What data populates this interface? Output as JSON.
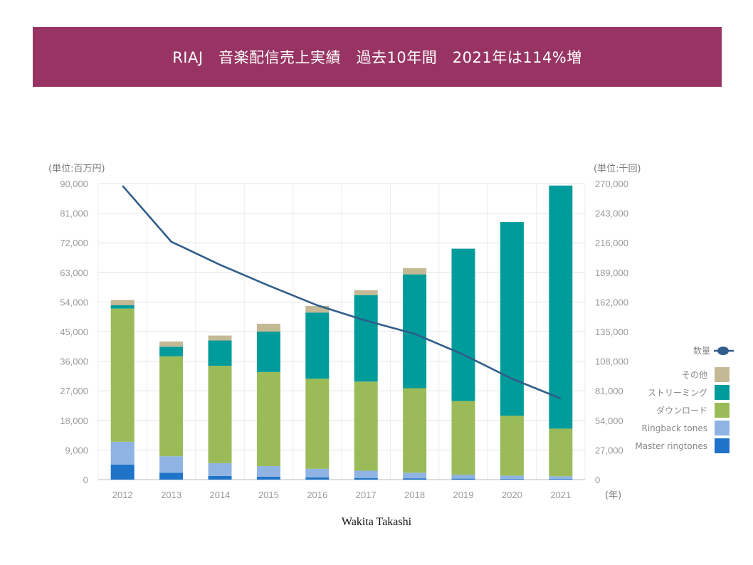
{
  "header": {
    "title": "RIAJ　音楽配信売上実績　過去10年間　2021年は114%増",
    "banner_color": "#983463"
  },
  "footer": {
    "credit": "Wakita Takashi"
  },
  "chart_data": {
    "type": "bar",
    "stacked": true,
    "categories": [
      "2012",
      "2013",
      "2014",
      "2015",
      "2016",
      "2017",
      "2018",
      "2019",
      "2020",
      "2021"
    ],
    "series": [
      {
        "name": "Master ringtones",
        "color": "#1f73c8",
        "values": [
          4600,
          2100,
          1100,
          900,
          700,
          500,
          400,
          300,
          200,
          200
        ]
      },
      {
        "name": "Ringback tones",
        "color": "#8fb4e3",
        "values": [
          6900,
          5000,
          3900,
          3200,
          2600,
          2200,
          1700,
          1200,
          1000,
          800
        ]
      },
      {
        "name": "ダウンロード",
        "color": "#9bbb59",
        "values": [
          40500,
          30400,
          29600,
          28600,
          27400,
          27100,
          25700,
          22400,
          18200,
          14500
        ]
      },
      {
        "name": "ストリーミング",
        "color": "#009b9b",
        "values": [
          1000,
          2900,
          7700,
          12300,
          20100,
          26300,
          34600,
          46300,
          58900,
          73900
        ]
      },
      {
        "name": "その他",
        "color": "#c4b995",
        "values": [
          1600,
          1600,
          1500,
          2400,
          2000,
          1500,
          1900,
          0,
          0,
          0
        ]
      }
    ],
    "line_series": {
      "name": "数量",
      "color": "#2f5d8c",
      "values": [
        268000,
        217000,
        196000,
        177000,
        159000,
        145000,
        133000,
        114000,
        92000,
        74000
      ]
    },
    "ylim_left": [
      0,
      90000
    ],
    "yticks_left": [
      "0",
      "9,000",
      "18,000",
      "27,000",
      "36,000",
      "45,000",
      "54,000",
      "63,000",
      "72,000",
      "81,000",
      "90,000"
    ],
    "ylim_right": [
      0,
      270000
    ],
    "yticks_right": [
      "0",
      "27,000",
      "54,000",
      "81,000",
      "108,000",
      "135,000",
      "162,000",
      "189,000",
      "216,000",
      "243,000",
      "270,000"
    ],
    "ylabel_left": "(単位:百万円)",
    "ylabel_right": "(単位:千回)",
    "xlabel": "(年)",
    "grid": true,
    "legend_position": "right",
    "legend_order": [
      "数量",
      "その他",
      "ストリーミング",
      "ダウンロード",
      "Ringback tones",
      "Master ringtones"
    ]
  }
}
